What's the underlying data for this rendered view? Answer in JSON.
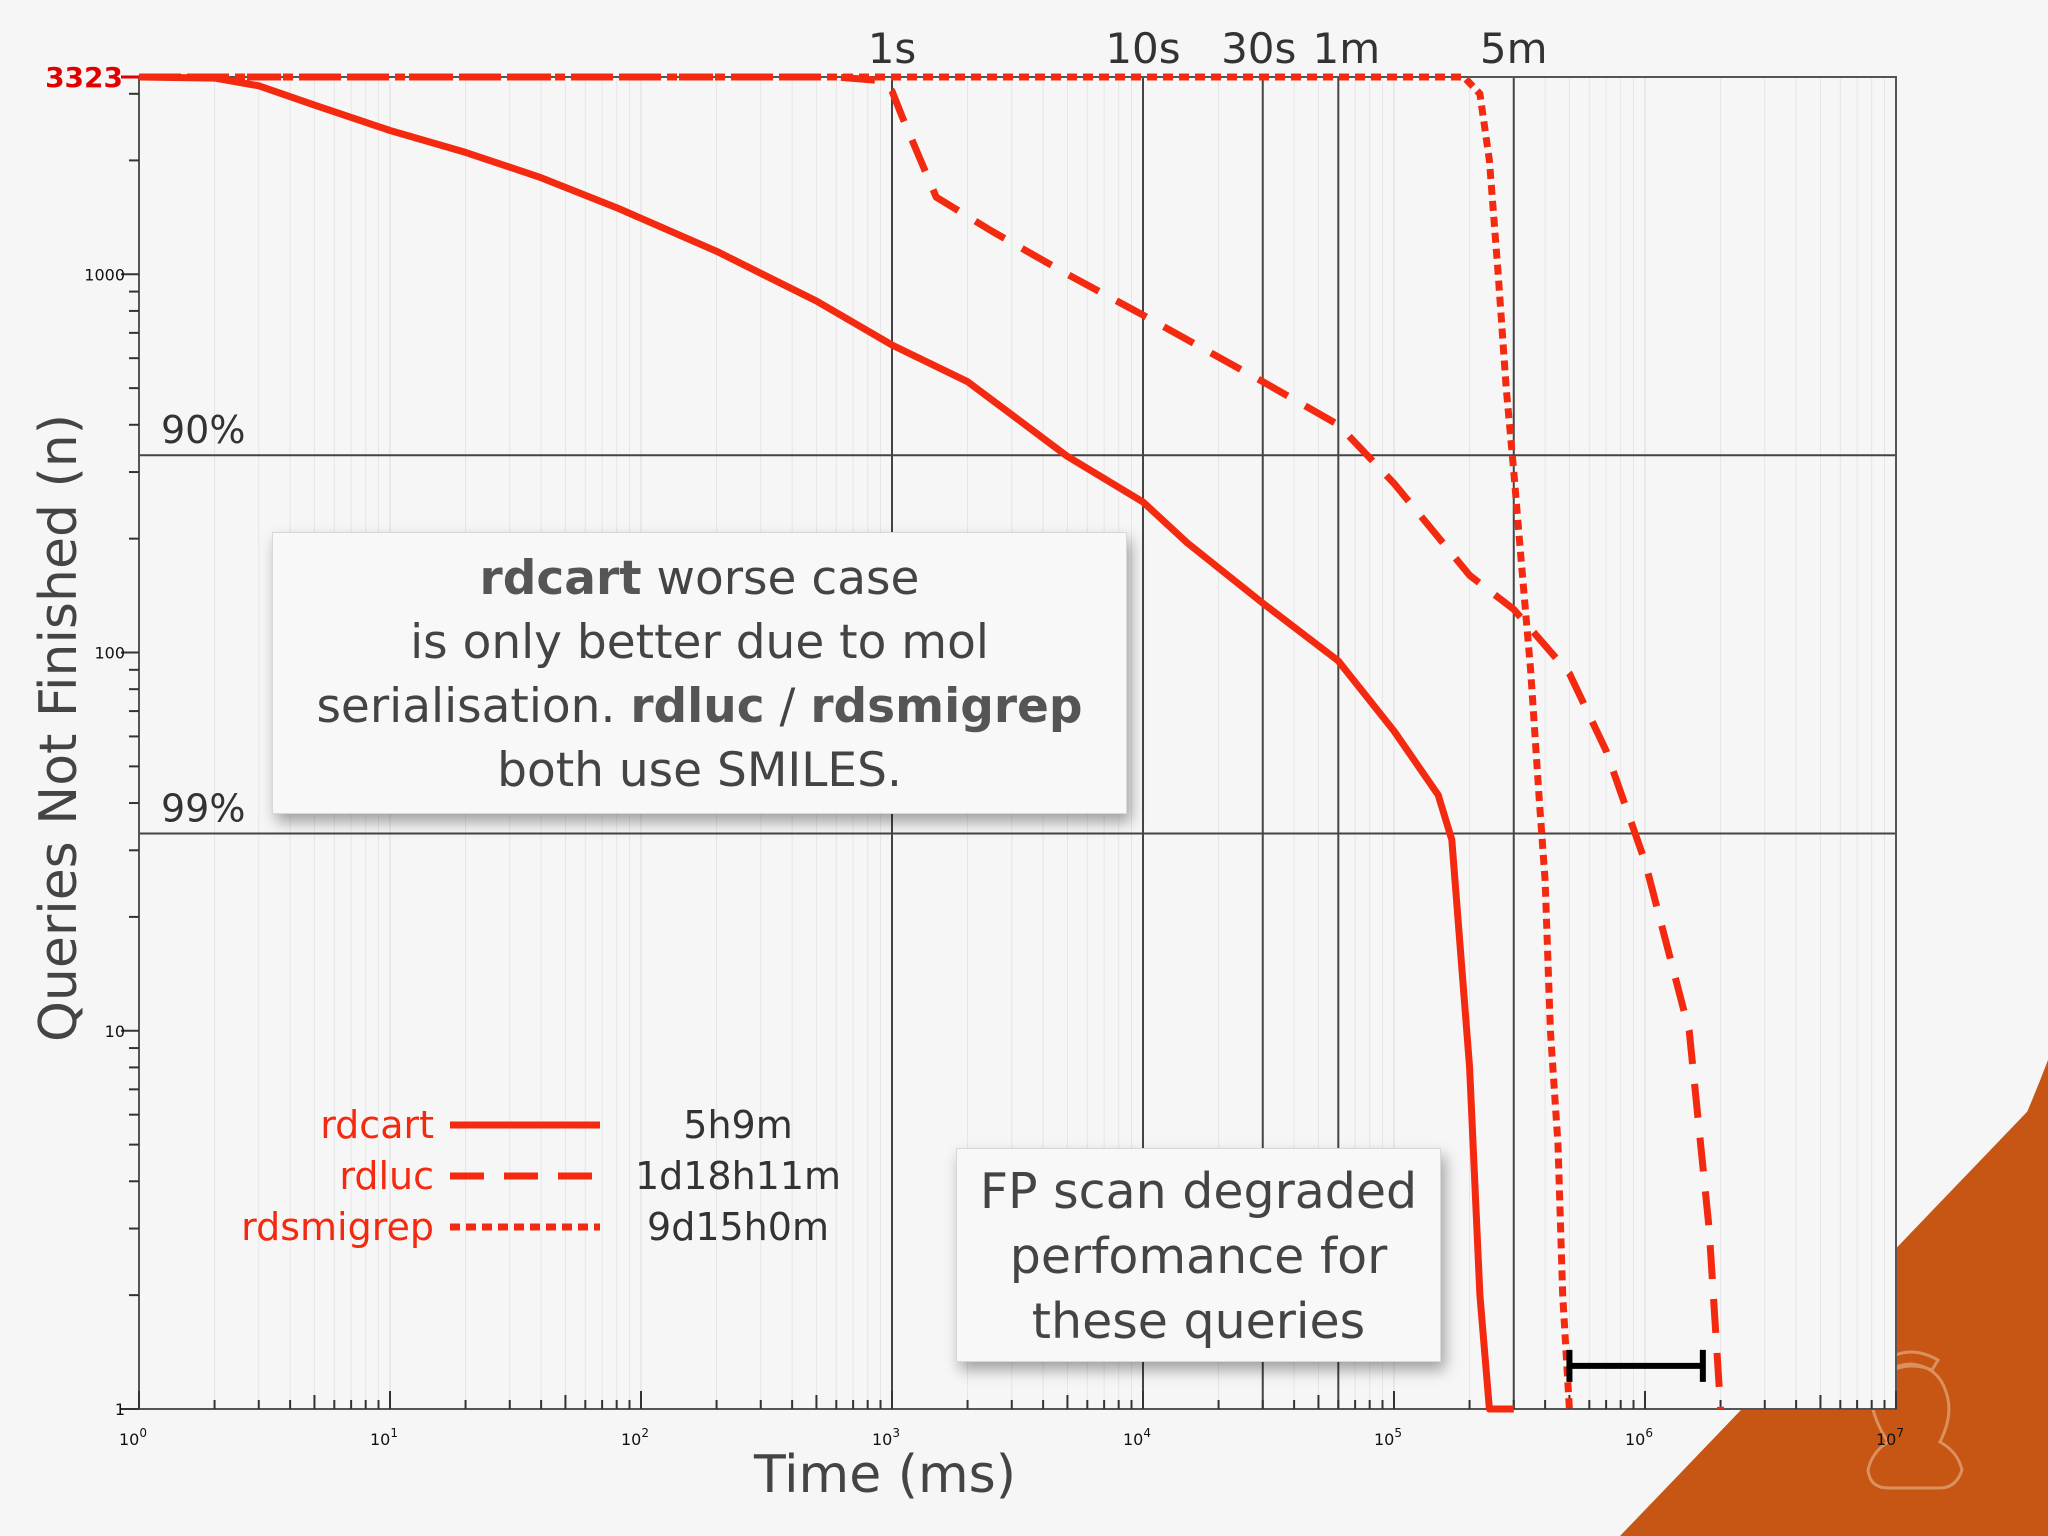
{
  "chart_data": {
    "type": "line",
    "xlabel": "Time (ms)",
    "ylabel": "Queries Not Finished (n)",
    "x_scale": "log",
    "y_scale": "log",
    "xlim": [
      1,
      10000000
    ],
    "ylim": [
      1,
      3323
    ],
    "x_ticks": [
      {
        "value": 1,
        "base": "10",
        "exp": "0"
      },
      {
        "value": 10,
        "base": "10",
        "exp": "1"
      },
      {
        "value": 100,
        "base": "10",
        "exp": "2"
      },
      {
        "value": 1000,
        "base": "10",
        "exp": "3"
      },
      {
        "value": 10000,
        "base": "10",
        "exp": "4"
      },
      {
        "value": 100000,
        "base": "10",
        "exp": "5"
      },
      {
        "value": 1000000,
        "base": "10",
        "exp": "6"
      },
      {
        "value": 10000000,
        "base": "10",
        "exp": "7"
      }
    ],
    "y_ticks": [
      {
        "value": 1,
        "label": "1"
      },
      {
        "value": 10,
        "label": "10"
      },
      {
        "value": 100,
        "label": "100"
      },
      {
        "value": 1000,
        "label": "1000"
      }
    ],
    "y_top_label": "3323",
    "time_markers": [
      {
        "label": "1s",
        "ms": 1000
      },
      {
        "label": "10s",
        "ms": 10000
      },
      {
        "label": "30s",
        "ms": 30000
      },
      {
        "label": "1m",
        "ms": 60000
      },
      {
        "label": "5m",
        "ms": 300000
      }
    ],
    "percent_lines": [
      {
        "label": "90%",
        "n": 332.3
      },
      {
        "label": "99%",
        "n": 33.23
      }
    ],
    "series": [
      {
        "name": "rdcart",
        "total": "5h9m",
        "style": "solid",
        "points": [
          [
            1,
            3323
          ],
          [
            2,
            3300
          ],
          [
            3,
            3150
          ],
          [
            5,
            2800
          ],
          [
            10,
            2400
          ],
          [
            20,
            2100
          ],
          [
            40,
            1800
          ],
          [
            80,
            1500
          ],
          [
            200,
            1150
          ],
          [
            500,
            850
          ],
          [
            1000,
            650
          ],
          [
            2000,
            520
          ],
          [
            5000,
            330
          ],
          [
            10000,
            250
          ],
          [
            15000,
            195
          ],
          [
            30000,
            135
          ],
          [
            60000,
            95
          ],
          [
            100000,
            62
          ],
          [
            150000,
            42
          ],
          [
            170000,
            32
          ],
          [
            200000,
            8
          ],
          [
            220000,
            2
          ],
          [
            240000,
            1
          ],
          [
            300000,
            1
          ]
        ]
      },
      {
        "name": "rdluc",
        "total": "1d18h11m",
        "style": "dashed",
        "points": [
          [
            1,
            3323
          ],
          [
            600,
            3323
          ],
          [
            900,
            3250
          ],
          [
            1000,
            3050
          ],
          [
            1100,
            2600
          ],
          [
            1500,
            1600
          ],
          [
            2500,
            1300
          ],
          [
            5000,
            1000
          ],
          [
            10000,
            780
          ],
          [
            30000,
            520
          ],
          [
            60000,
            400
          ],
          [
            100000,
            280
          ],
          [
            200000,
            160
          ],
          [
            300000,
            130
          ],
          [
            500000,
            88
          ],
          [
            700000,
            55
          ],
          [
            1000000,
            28
          ],
          [
            1500000,
            10
          ],
          [
            1800000,
            3
          ],
          [
            2000000,
            1
          ]
        ]
      },
      {
        "name": "rdsmigrep",
        "total": "9d15h0m",
        "style": "dotted",
        "points": [
          [
            1,
            3323
          ],
          [
            190000,
            3323
          ],
          [
            220000,
            3000
          ],
          [
            240000,
            2000
          ],
          [
            260000,
            1000
          ],
          [
            280000,
            500
          ],
          [
            300000,
            300
          ],
          [
            320000,
            180
          ],
          [
            350000,
            90
          ],
          [
            380000,
            40
          ],
          [
            400000,
            25
          ],
          [
            420000,
            10
          ],
          [
            450000,
            5
          ],
          [
            470000,
            2
          ],
          [
            500000,
            1
          ]
        ]
      }
    ],
    "legend_position": "bottom-left",
    "colors": {
      "series": "#f42a10",
      "grid": "#444444",
      "axis": "#333333",
      "emphasis": "#e00000"
    },
    "range_bar": {
      "from_ms": 500000,
      "to_ms": 1700000,
      "n": 1.3,
      "color": "#000000"
    }
  },
  "notes": {
    "note1_bold_1": "rdcart",
    "note1_text_1": " worse case",
    "note1_text_2": "is only better due to mol",
    "note1_text_3": "serialisation. ",
    "note1_bold_2": "rdluc",
    "note1_text_4": " / ",
    "note1_bold_3": "rdsmigrep",
    "note1_text_5": "both use SMILES.",
    "note2_line_1": "FP scan degraded",
    "note2_line_2": "perfomance for",
    "note2_line_3": "these queries"
  }
}
